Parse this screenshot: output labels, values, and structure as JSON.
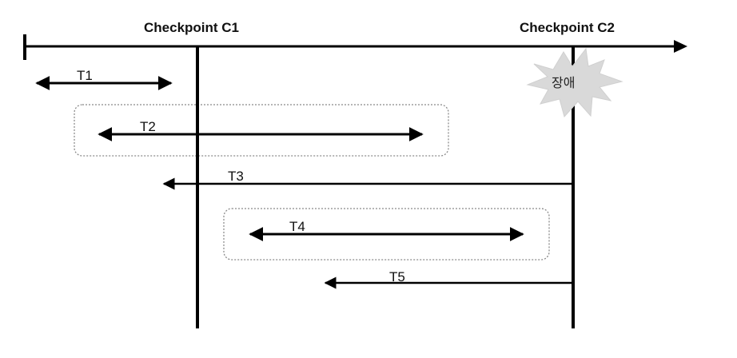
{
  "checkpoints": [
    {
      "label": "Checkpoint C1"
    },
    {
      "label": "Checkpoint C2"
    }
  ],
  "failure": {
    "label": "장애"
  },
  "transactions": [
    {
      "label": "T1"
    },
    {
      "label": "T2"
    },
    {
      "label": "T3"
    },
    {
      "label": "T4"
    },
    {
      "label": "T5"
    }
  ]
}
